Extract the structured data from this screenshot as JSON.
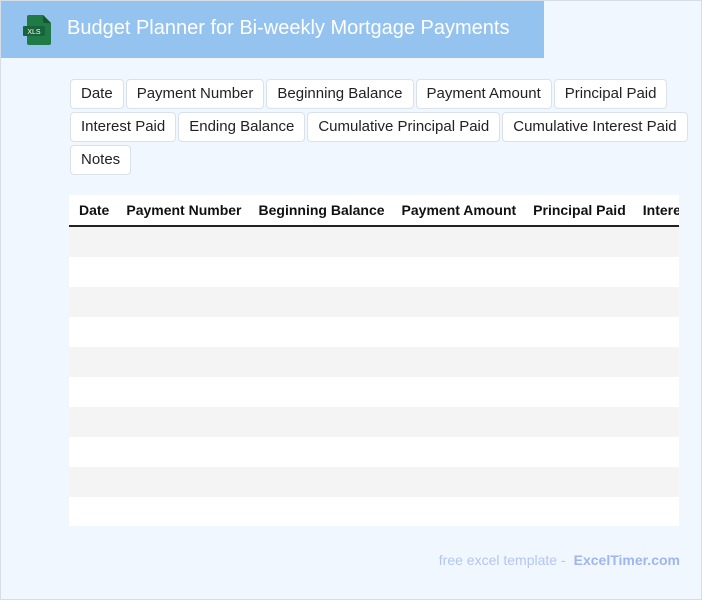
{
  "header": {
    "title": "Budget Planner for Bi-weekly Mortgage Payments",
    "icon": "xls-file-icon",
    "icon_label": "XLS"
  },
  "chips": [
    "Date",
    "Payment Number",
    "Beginning Balance",
    "Payment Amount",
    "Principal Paid",
    "Interest Paid",
    "Ending Balance",
    "Cumulative Principal Paid",
    "Cumulative Interest Paid",
    "Notes"
  ],
  "table": {
    "columns": [
      "Date",
      "Payment Number",
      "Beginning Balance",
      "Payment Amount",
      "Principal Paid",
      "Interest Paid",
      "Ending Balance",
      "Cumulative Principal Paid",
      "Cumulative Interest Paid",
      "Notes"
    ],
    "row_count": 10
  },
  "footer": {
    "text": "free excel template -",
    "brand": "ExcelTimer.com"
  },
  "colors": {
    "header_bg": "#93c3ee",
    "page_bg": "#f0f7ff",
    "icon_green": "#1f7a45"
  }
}
